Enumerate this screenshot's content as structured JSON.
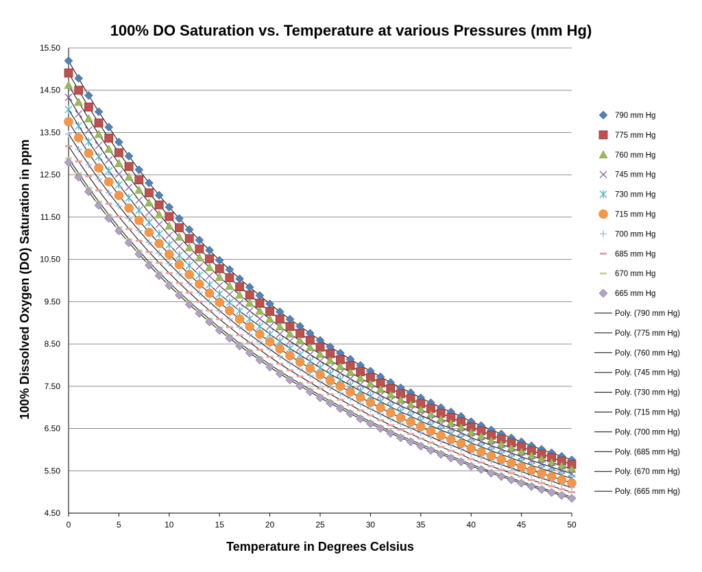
{
  "chart_data": {
    "type": "scatter",
    "title": "100% DO Saturation vs. Temperature at various Pressures (mm Hg)",
    "xlabel": "Temperature in Degrees Celsius",
    "ylabel": "100% Dissolved Oxygen (DO) Saturation in ppm",
    "xlim": [
      0,
      50
    ],
    "ylim": [
      4.5,
      15.5
    ],
    "x_ticks": [
      "0",
      "5",
      "10",
      "15",
      "20",
      "25",
      "30",
      "35",
      "40",
      "45",
      "50"
    ],
    "y_ticks": [
      "4.50",
      "5.50",
      "6.50",
      "7.50",
      "8.50",
      "9.50",
      "10.50",
      "11.50",
      "12.50",
      "13.50",
      "14.50",
      "15.50"
    ],
    "grid": "horizontal",
    "legend_position": "right",
    "x": [
      0,
      1,
      2,
      3,
      4,
      5,
      6,
      7,
      8,
      9,
      10,
      11,
      12,
      13,
      14,
      15,
      16,
      17,
      18,
      19,
      20,
      21,
      22,
      23,
      24,
      25,
      26,
      27,
      28,
      29,
      30,
      31,
      32,
      33,
      34,
      35,
      36,
      37,
      38,
      39,
      40,
      41,
      42,
      43,
      44,
      45,
      46,
      47,
      48,
      49,
      50
    ],
    "base_760": [
      14.62,
      14.22,
      13.83,
      13.46,
      13.11,
      12.77,
      12.45,
      12.14,
      11.84,
      11.56,
      11.29,
      11.03,
      10.78,
      10.54,
      10.31,
      10.08,
      9.87,
      9.66,
      9.47,
      9.28,
      9.09,
      8.91,
      8.74,
      8.58,
      8.42,
      8.26,
      8.11,
      7.97,
      7.83,
      7.69,
      7.56,
      7.43,
      7.3,
      7.18,
      7.07,
      6.95,
      6.84,
      6.73,
      6.63,
      6.53,
      6.41,
      6.32,
      6.22,
      6.13,
      6.04,
      5.95,
      5.86,
      5.78,
      5.7,
      5.62,
      5.54
    ],
    "series": [
      {
        "name": "790 mm Hg",
        "pressure": 790,
        "marker": "diamond",
        "color": "#4f81bd"
      },
      {
        "name": "775 mm Hg",
        "pressure": 775,
        "marker": "square",
        "color": "#c0504d"
      },
      {
        "name": "760 mm Hg",
        "pressure": 760,
        "marker": "triangle",
        "color": "#9bbb59"
      },
      {
        "name": "745 mm Hg",
        "pressure": 745,
        "marker": "x",
        "color": "#8064a2"
      },
      {
        "name": "730 mm Hg",
        "pressure": 730,
        "marker": "star",
        "color": "#4bacc6"
      },
      {
        "name": "715 mm Hg",
        "pressure": 715,
        "marker": "circle",
        "color": "#f79646"
      },
      {
        "name": "700 mm Hg",
        "pressure": 700,
        "marker": "plus",
        "color": "#95b3d7"
      },
      {
        "name": "685 mm Hg",
        "pressure": 685,
        "marker": "dash",
        "color": "#e6a0a0"
      },
      {
        "name": "670 mm Hg",
        "pressure": 670,
        "marker": "dash",
        "color": "#c3d69b"
      },
      {
        "name": "665 mm Hg",
        "pressure": 665,
        "marker": "diamond",
        "color": "#b3a2c7"
      }
    ],
    "trendlines": [
      {
        "name": "Poly. (790 mm Hg)",
        "series": "790 mm Hg"
      },
      {
        "name": "Poly. (775 mm Hg)",
        "series": "775 mm Hg"
      },
      {
        "name": "Poly. (760 mm Hg)",
        "series": "760 mm Hg"
      },
      {
        "name": "Poly. (745 mm Hg)",
        "series": "745 mm Hg"
      },
      {
        "name": "Poly. (730 mm Hg)",
        "series": "730 mm Hg"
      },
      {
        "name": "Poly. (715 mm Hg)",
        "series": "715 mm Hg"
      },
      {
        "name": "Poly. (700 mm Hg)",
        "series": "700 mm Hg"
      },
      {
        "name": "Poly. (685 mm Hg)",
        "series": "685 mm Hg"
      },
      {
        "name": "Poly. (670 mm Hg)",
        "series": "670 mm Hg"
      },
      {
        "name": "Poly. (665 mm Hg)",
        "series": "665 mm Hg"
      }
    ],
    "trendline_color": "#000000",
    "gridline_color": "#8c8c8c"
  }
}
